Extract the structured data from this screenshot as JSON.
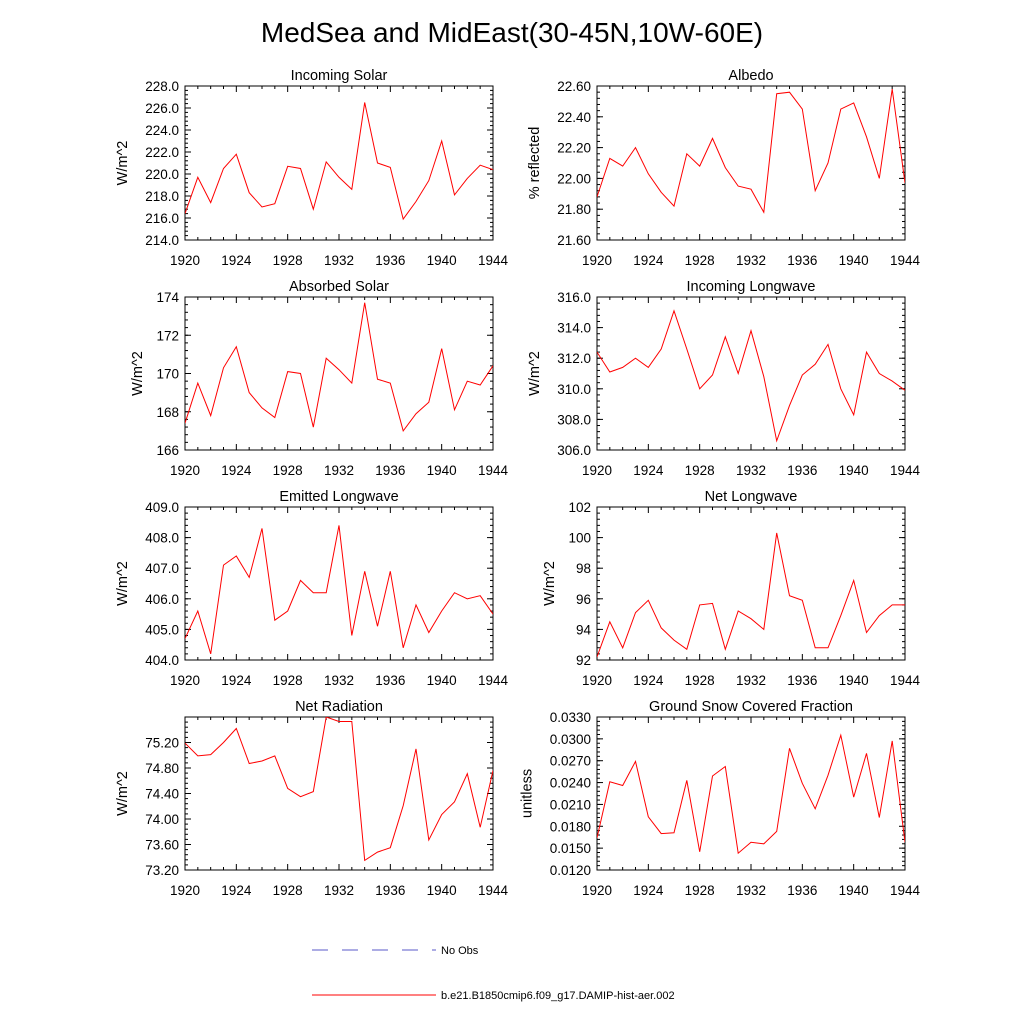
{
  "figure": {
    "title": "MedSea and MidEast(30-45N,10W-60E)",
    "legend": [
      {
        "label": "No Obs",
        "color": "#5a5ac8",
        "dash": true
      },
      {
        "label": "b.e21.B1850cmip6.f09_g17.DAMIP-hist-aer.002",
        "color": "#ff0000",
        "dash": false
      }
    ]
  },
  "chart_data": [
    {
      "type": "line",
      "title": "Incoming Solar",
      "ylabel": "W/m^2",
      "xlim": [
        1920,
        1944
      ],
      "ylim": [
        214,
        228
      ],
      "xticks": [
        "1920",
        "1924",
        "1928",
        "1932",
        "1936",
        "1940",
        "1944"
      ],
      "yticks": [
        "214.0",
        "216.0",
        "218.0",
        "220.0",
        "222.0",
        "224.0",
        "226.0",
        "228.0"
      ],
      "x": [
        1920,
        1921,
        1922,
        1923,
        1924,
        1925,
        1926,
        1927,
        1928,
        1929,
        1930,
        1931,
        1932,
        1933,
        1934,
        1935,
        1936,
        1937,
        1938,
        1939,
        1940,
        1941,
        1942,
        1943,
        1944
      ],
      "series": [
        {
          "color": "#ff0000",
          "values": [
            216.4,
            219.7,
            217.4,
            220.5,
            221.8,
            218.3,
            217.0,
            217.3,
            220.7,
            220.5,
            216.8,
            221.1,
            219.7,
            218.6,
            226.5,
            221.0,
            220.6,
            215.9,
            217.5,
            219.4,
            223.0,
            218.1,
            219.6,
            220.8,
            220.4
          ]
        }
      ]
    },
    {
      "type": "line",
      "title": "Albedo",
      "ylabel": "% reflected",
      "xlim": [
        1920,
        1944
      ],
      "ylim": [
        21.6,
        22.6
      ],
      "xticks": [
        "1920",
        "1924",
        "1928",
        "1932",
        "1936",
        "1940",
        "1944"
      ],
      "yticks": [
        "21.60",
        "21.80",
        "22.00",
        "22.20",
        "22.40",
        "22.60"
      ],
      "x": [
        1920,
        1921,
        1922,
        1923,
        1924,
        1925,
        1926,
        1927,
        1928,
        1929,
        1930,
        1931,
        1932,
        1933,
        1934,
        1935,
        1936,
        1937,
        1938,
        1939,
        1940,
        1941,
        1942,
        1943,
        1944
      ],
      "series": [
        {
          "color": "#ff0000",
          "values": [
            21.88,
            22.13,
            22.08,
            22.2,
            22.03,
            21.91,
            21.82,
            22.16,
            22.08,
            22.26,
            22.07,
            21.95,
            21.93,
            21.78,
            22.55,
            22.56,
            22.45,
            21.92,
            22.1,
            22.45,
            22.49,
            22.27,
            22.0,
            22.58,
            21.97
          ]
        }
      ]
    },
    {
      "type": "line",
      "title": "Absorbed Solar",
      "ylabel": "W/m^2",
      "xlim": [
        1920,
        1944
      ],
      "ylim": [
        166,
        174
      ],
      "xticks": [
        "1920",
        "1924",
        "1928",
        "1932",
        "1936",
        "1940",
        "1944"
      ],
      "yticks": [
        "166",
        "168",
        "170",
        "172",
        "174"
      ],
      "x": [
        1920,
        1921,
        1922,
        1923,
        1924,
        1925,
        1926,
        1927,
        1928,
        1929,
        1930,
        1931,
        1932,
        1933,
        1934,
        1935,
        1936,
        1937,
        1938,
        1939,
        1940,
        1941,
        1942,
        1943,
        1944
      ],
      "series": [
        {
          "color": "#ff0000",
          "values": [
            167.4,
            169.5,
            167.8,
            170.3,
            171.4,
            169.0,
            168.2,
            167.7,
            170.1,
            170.0,
            167.2,
            170.8,
            170.2,
            169.5,
            173.7,
            169.7,
            169.5,
            167.0,
            167.9,
            168.5,
            171.3,
            168.1,
            169.6,
            169.4,
            170.4
          ]
        }
      ]
    },
    {
      "type": "line",
      "title": "Incoming Longwave",
      "ylabel": "W/m^2",
      "xlim": [
        1920,
        1944
      ],
      "ylim": [
        306,
        316
      ],
      "xticks": [
        "1920",
        "1924",
        "1928",
        "1932",
        "1936",
        "1940",
        "1944"
      ],
      "yticks": [
        "306.0",
        "308.0",
        "310.0",
        "312.0",
        "314.0",
        "316.0"
      ],
      "x": [
        1920,
        1921,
        1922,
        1923,
        1924,
        1925,
        1926,
        1927,
        1928,
        1929,
        1930,
        1931,
        1932,
        1933,
        1934,
        1935,
        1936,
        1937,
        1938,
        1939,
        1940,
        1941,
        1942,
        1943,
        1944
      ],
      "series": [
        {
          "color": "#ff0000",
          "values": [
            312.4,
            311.1,
            311.4,
            312.0,
            311.4,
            312.6,
            315.1,
            312.6,
            310.0,
            310.9,
            313.4,
            311.0,
            313.8,
            310.8,
            306.6,
            308.9,
            310.9,
            311.6,
            312.9,
            310.0,
            308.3,
            312.4,
            311.0,
            310.5,
            309.9
          ]
        }
      ]
    },
    {
      "type": "line",
      "title": "Emitted Longwave",
      "ylabel": "W/m^2",
      "xlim": [
        1920,
        1944
      ],
      "ylim": [
        404,
        409
      ],
      "xticks": [
        "1920",
        "1924",
        "1928",
        "1932",
        "1936",
        "1940",
        "1944"
      ],
      "yticks": [
        "404.0",
        "405.0",
        "406.0",
        "407.0",
        "408.0",
        "409.0"
      ],
      "x": [
        1920,
        1921,
        1922,
        1923,
        1924,
        1925,
        1926,
        1927,
        1928,
        1929,
        1930,
        1931,
        1932,
        1933,
        1934,
        1935,
        1936,
        1937,
        1938,
        1939,
        1940,
        1941,
        1942,
        1943,
        1944
      ],
      "series": [
        {
          "color": "#ff0000",
          "values": [
            404.7,
            405.6,
            404.2,
            407.1,
            407.4,
            406.7,
            408.3,
            405.3,
            405.6,
            406.6,
            406.2,
            406.2,
            408.4,
            404.8,
            406.9,
            405.1,
            406.9,
            404.4,
            405.8,
            404.9,
            405.6,
            406.2,
            406.0,
            406.1,
            405.5
          ]
        }
      ]
    },
    {
      "type": "line",
      "title": "Net Longwave",
      "ylabel": "W/m^2",
      "xlim": [
        1920,
        1944
      ],
      "ylim": [
        92,
        102
      ],
      "xticks": [
        "1920",
        "1924",
        "1928",
        "1932",
        "1936",
        "1940",
        "1944"
      ],
      "yticks": [
        "92",
        "94",
        "96",
        "98",
        "100",
        "102"
      ],
      "x": [
        1920,
        1921,
        1922,
        1923,
        1924,
        1925,
        1926,
        1927,
        1928,
        1929,
        1930,
        1931,
        1932,
        1933,
        1934,
        1935,
        1936,
        1937,
        1938,
        1939,
        1940,
        1941,
        1942,
        1943,
        1944
      ],
      "series": [
        {
          "color": "#ff0000",
          "values": [
            92.2,
            94.5,
            92.8,
            95.1,
            95.9,
            94.1,
            93.3,
            92.7,
            95.6,
            95.7,
            92.7,
            95.2,
            94.7,
            94.0,
            100.3,
            96.2,
            95.9,
            92.8,
            92.8,
            94.9,
            97.2,
            93.8,
            94.9,
            95.6,
            95.6
          ]
        }
      ]
    },
    {
      "type": "line",
      "title": "Net Radiation",
      "ylabel": "W/m^2",
      "xlim": [
        1920,
        1944
      ],
      "ylim": [
        73.2,
        75.6
      ],
      "xticks": [
        "1920",
        "1924",
        "1928",
        "1932",
        "1936",
        "1940",
        "1944"
      ],
      "yticks": [
        "73.20",
        "73.60",
        "74.00",
        "74.40",
        "74.80",
        "75.20"
      ],
      "x": [
        1920,
        1921,
        1922,
        1923,
        1924,
        1925,
        1926,
        1927,
        1928,
        1929,
        1930,
        1931,
        1932,
        1933,
        1934,
        1935,
        1936,
        1937,
        1938,
        1939,
        1940,
        1941,
        1942,
        1943,
        1944
      ],
      "series": [
        {
          "color": "#ff0000",
          "values": [
            75.19,
            74.99,
            75.01,
            75.2,
            75.42,
            74.87,
            74.91,
            74.99,
            74.48,
            74.35,
            74.43,
            75.6,
            75.53,
            75.53,
            73.35,
            73.48,
            73.55,
            74.21,
            75.1,
            73.67,
            74.07,
            74.27,
            74.71,
            73.87,
            74.76
          ]
        }
      ]
    },
    {
      "type": "line",
      "title": "Ground Snow Covered Fraction",
      "ylabel": "unitless",
      "xlim": [
        1920,
        1944
      ],
      "ylim": [
        0.012,
        0.033
      ],
      "xticks": [
        "1920",
        "1924",
        "1928",
        "1932",
        "1936",
        "1940",
        "1944"
      ],
      "yticks": [
        "0.0120",
        "0.0150",
        "0.0180",
        "0.0210",
        "0.0240",
        "0.0270",
        "0.0300",
        "0.0330"
      ],
      "x": [
        1920,
        1921,
        1922,
        1923,
        1924,
        1925,
        1926,
        1927,
        1928,
        1929,
        1930,
        1931,
        1932,
        1933,
        1934,
        1935,
        1936,
        1937,
        1938,
        1939,
        1940,
        1941,
        1942,
        1943,
        1944
      ],
      "series": [
        {
          "color": "#ff0000",
          "values": [
            0.0164,
            0.0241,
            0.0236,
            0.0269,
            0.0193,
            0.017,
            0.0171,
            0.0243,
            0.0145,
            0.0249,
            0.0262,
            0.0143,
            0.0158,
            0.0156,
            0.0173,
            0.0287,
            0.0239,
            0.0204,
            0.025,
            0.0305,
            0.022,
            0.028,
            0.0192,
            0.0297,
            0.0158
          ]
        }
      ]
    }
  ]
}
